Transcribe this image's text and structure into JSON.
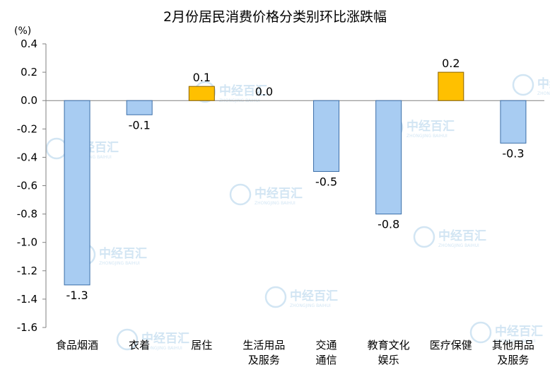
{
  "chart_data": {
    "type": "bar",
    "title": "2月份居民消费价格分类别环比涨跌幅",
    "unit_label": "(%)",
    "categories": [
      [
        "食品烟酒"
      ],
      [
        "衣着"
      ],
      [
        "居住"
      ],
      [
        "生活用品",
        "及服务"
      ],
      [
        "交通",
        "通信"
      ],
      [
        "教育文化",
        "娱乐"
      ],
      [
        "医疗保健"
      ],
      [
        "其他用品",
        "及服务"
      ]
    ],
    "values": [
      -1.3,
      -0.1,
      0.1,
      0.0,
      -0.5,
      -0.8,
      0.2,
      -0.3
    ],
    "data_labels": [
      "-1.3",
      "-0.1",
      "0.1",
      "0.0",
      "-0.5",
      "-0.8",
      "0.2",
      "-0.3"
    ],
    "ylim": [
      -1.6,
      0.4
    ],
    "yticks": [
      "0.4",
      "0.2",
      "0.0",
      "-0.2",
      "-0.4",
      "-0.6",
      "-0.8",
      "-1.0",
      "-1.2",
      "-1.4",
      "-1.6"
    ],
    "grid": false,
    "colors": {
      "negative": "#a8ccf2",
      "positive": "#ffc000",
      "negative_stroke": "#3b6ea8",
      "positive_stroke": "#8a6200"
    }
  },
  "watermark": {
    "text": "中经百汇",
    "subtext": "ZHONGJING BAIHUI",
    "color": "#9cc7e6"
  }
}
